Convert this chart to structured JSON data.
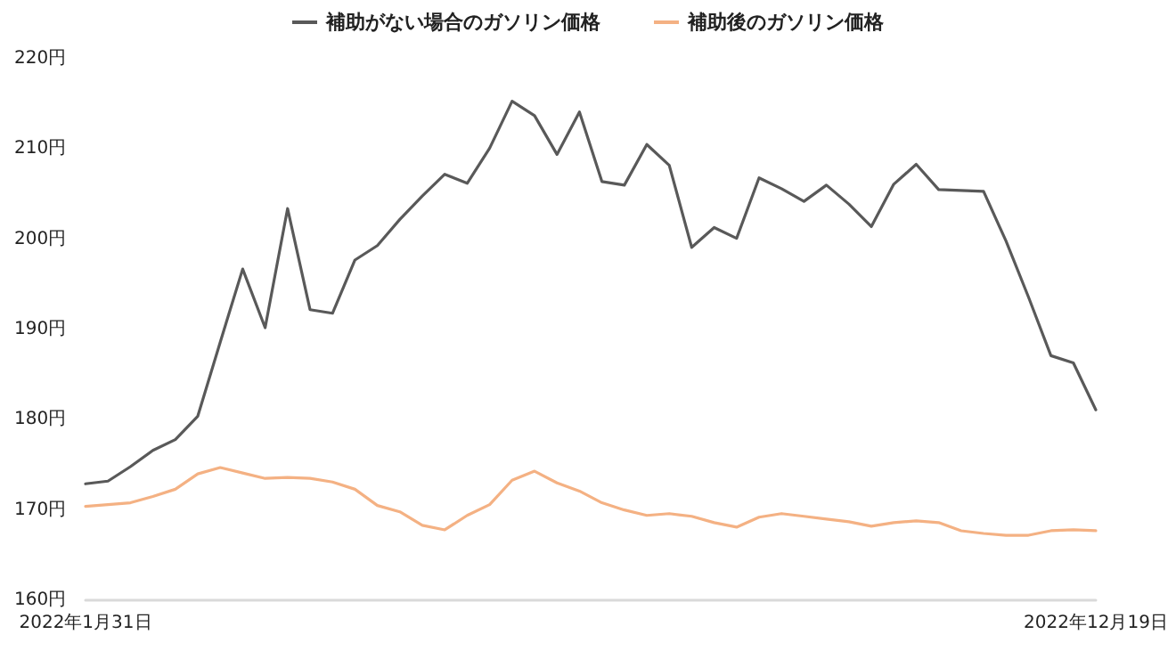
{
  "chart_data": {
    "type": "line",
    "categories": [
      "2022年1月31日",
      null,
      null,
      null,
      null,
      null,
      null,
      null,
      null,
      null,
      null,
      null,
      null,
      null,
      null,
      null,
      null,
      null,
      null,
      null,
      null,
      null,
      null,
      null,
      null,
      null,
      null,
      null,
      null,
      null,
      null,
      null,
      null,
      null,
      null,
      null,
      null,
      null,
      null,
      null,
      null,
      null,
      null,
      null,
      null,
      "2022年12月19日"
    ],
    "series": [
      {
        "name": "補助がない場合のガソリン価格",
        "color": "#595959",
        "values": [
          172.9,
          173.2,
          174.8,
          176.6,
          177.8,
          180.4,
          188.6,
          196.7,
          190.2,
          203.4,
          192.2,
          191.8,
          197.7,
          199.3,
          202.2,
          204.8,
          207.2,
          206.2,
          210.1,
          215.3,
          213.7,
          209.4,
          214.1,
          206.4,
          206.0,
          210.5,
          208.2,
          199.1,
          201.3,
          200.1,
          206.8,
          205.6,
          204.2,
          206.0,
          203.9,
          201.4,
          206.1,
          208.3,
          205.5,
          205.4,
          205.3,
          199.8,
          193.6,
          187.1,
          186.3,
          181.1
        ]
      },
      {
        "name": "補助後のガソリン価格",
        "color": "#f4b183",
        "values": [
          170.4,
          170.6,
          170.8,
          171.5,
          172.3,
          174.0,
          174.7,
          174.1,
          173.5,
          173.6,
          173.5,
          173.1,
          172.3,
          170.5,
          169.8,
          168.3,
          167.8,
          169.4,
          170.6,
          173.3,
          174.3,
          173.0,
          172.1,
          170.8,
          170.0,
          169.4,
          169.6,
          169.3,
          168.6,
          168.1,
          169.2,
          169.6,
          169.3,
          169.0,
          168.7,
          168.2,
          168.6,
          168.8,
          168.6,
          167.7,
          167.4,
          167.2,
          167.2,
          167.7,
          167.8,
          167.7
        ]
      }
    ],
    "ylim": [
      160,
      220
    ],
    "yticks": [
      {
        "value": 160,
        "label": "160円"
      },
      {
        "value": 170,
        "label": "170円"
      },
      {
        "value": 180,
        "label": "180円"
      },
      {
        "value": 190,
        "label": "190円"
      },
      {
        "value": 200,
        "label": "200円"
      },
      {
        "value": 210,
        "label": "210円"
      },
      {
        "value": 220,
        "label": "220円"
      }
    ],
    "grid": false,
    "legend": "top",
    "marker": "none",
    "line_style": "solid"
  }
}
